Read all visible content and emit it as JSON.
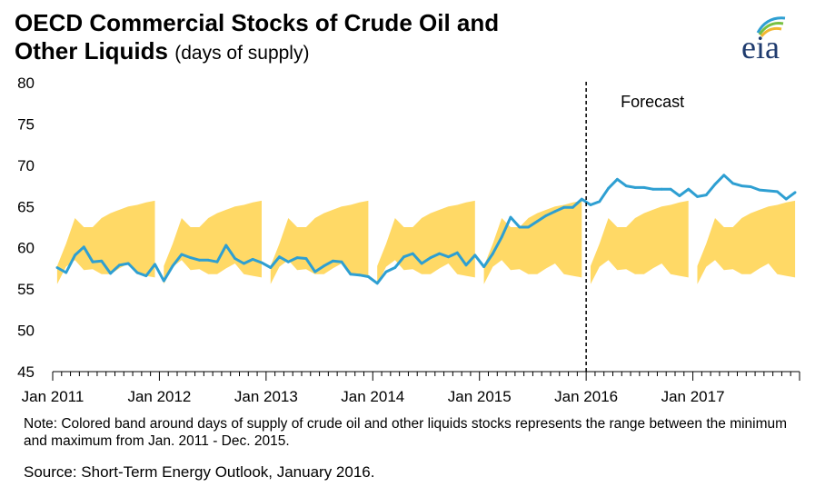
{
  "title": {
    "line1": "OECD Commercial Stocks of Crude Oil and",
    "line2_bold": "Other Liquids",
    "line2_sub": "(days of supply)"
  },
  "logo": {
    "text": "eia",
    "icon": "eia-sunrise-logo-icon"
  },
  "note": "Note:  Colored band around days of supply of crude oil and other liquids stocks represents the range between the minimum and maximum from Jan. 2011 - Dec. 2015.",
  "source": "Source: Short-Term Energy Outlook, January 2016.",
  "colors": {
    "line": "#2e9fd2",
    "band": "#ffd966",
    "axis": "#000000"
  },
  "chart_data": {
    "type": "line",
    "title": "OECD Commercial Stocks of Crude Oil and Other Liquids (days of supply)",
    "xlabel": "",
    "ylabel": "",
    "ylim": [
      45,
      80
    ],
    "y_ticks": [
      45,
      50,
      55,
      60,
      65,
      70,
      75,
      80
    ],
    "x_tick_labels": [
      "Jan 2011",
      "Jan 2012",
      "Jan 2013",
      "Jan 2014",
      "Jan 2015",
      "Jan 2016",
      "Jan 2017"
    ],
    "grid": false,
    "annotations": [
      {
        "text": "Forecast",
        "at": "Jan 2016",
        "style": "dashed vertical line"
      }
    ],
    "band": {
      "name": "Range between minimum and maximum, Jan. 2011 - Dec. 2015",
      "min": [
        55.6,
        57.7,
        58.5,
        57.3,
        57.4,
        56.8,
        56.8,
        57.5,
        58.1,
        56.8,
        56.6,
        56.4
      ],
      "max": [
        57.8,
        60.5,
        63.6,
        62.5,
        62.5,
        63.6,
        64.2,
        64.6,
        65.0,
        65.2,
        65.5,
        65.7
      ]
    },
    "series": [
      {
        "start": "Jan 2011",
        "frequency": "monthly",
        "values": [
          57.6,
          57.0,
          59.1,
          60.1,
          58.3,
          58.4,
          56.9,
          57.9,
          58.1,
          57.0,
          56.6,
          58.0,
          56.0,
          57.8,
          59.2,
          58.8,
          58.5,
          58.5,
          58.3,
          60.3,
          58.7,
          58.1,
          58.6,
          58.2,
          57.6,
          58.9,
          58.3,
          58.8,
          58.7,
          57.1,
          57.8,
          58.4,
          58.3,
          56.8,
          56.7,
          56.5,
          55.7,
          57.1,
          57.6,
          58.9,
          59.3,
          58.1,
          58.8,
          59.3,
          58.9,
          59.4,
          57.9,
          59.1,
          57.7,
          59.3,
          61.3,
          63.7,
          62.5,
          62.5,
          63.2,
          63.9,
          64.4,
          64.9,
          64.9,
          65.9,
          65.2,
          65.6,
          67.2,
          68.3,
          67.5,
          67.3,
          67.3,
          67.1,
          67.1,
          67.1,
          66.3,
          67.1,
          66.2,
          66.4,
          67.7,
          68.8,
          67.8,
          67.5,
          67.4,
          67.0,
          66.9,
          66.8,
          65.9,
          66.7
        ]
      }
    ]
  }
}
